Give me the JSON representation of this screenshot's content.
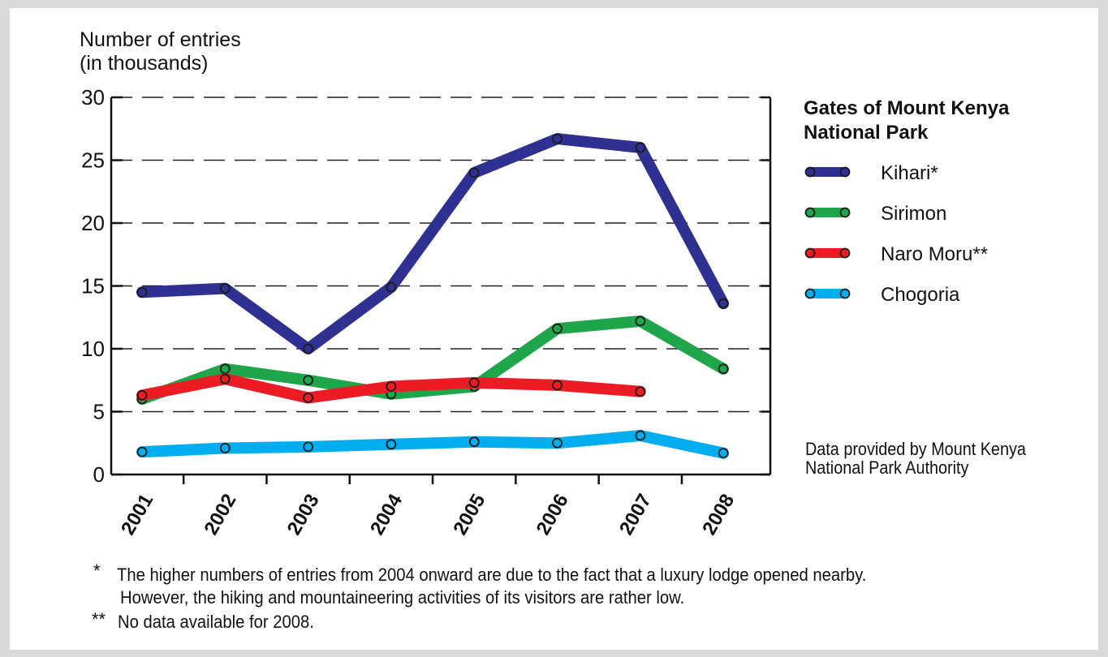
{
  "chart_data": {
    "type": "line",
    "ylabel": [
      "Number of entries",
      "(in thousands)"
    ],
    "categories": [
      "2001",
      "2002",
      "2003",
      "2004",
      "2005",
      "2006",
      "2007",
      "2008"
    ],
    "ylim": [
      0,
      30
    ],
    "yticks": [
      "0",
      "5",
      "10",
      "15",
      "20",
      "25",
      "30"
    ],
    "grid": "dashed horizontal",
    "legend_title": [
      "Gates of Mount Kenya",
      "National Park"
    ],
    "legend_placement": "right",
    "series": [
      {
        "name": "Kihari*",
        "color": "#2e3192",
        "values": [
          14.5,
          14.8,
          10.0,
          14.9,
          24.0,
          26.7,
          26.0,
          13.6
        ]
      },
      {
        "name": "Sirimon",
        "color": "#1fa64a",
        "values": [
          6.0,
          8.4,
          7.5,
          6.4,
          7.0,
          11.6,
          12.2,
          8.4
        ]
      },
      {
        "name": "Naro Moru**",
        "color": "#ed1c24",
        "values": [
          6.3,
          7.6,
          6.1,
          7.0,
          7.3,
          7.1,
          6.6,
          null
        ]
      },
      {
        "name": "Chogoria",
        "color": "#00aeef",
        "values": [
          1.8,
          2.1,
          2.2,
          2.4,
          2.6,
          2.5,
          3.1,
          1.7
        ]
      }
    ],
    "source": [
      "Data provided by Mount Kenya",
      "National Park Authority"
    ]
  },
  "notes": {
    "mark1": "*",
    "line1a": "The higher numbers of entries from 2004 onward are due to the fact that a luxury lodge opened nearby.",
    "line1b": "However, the hiking and mountaineering activities of its visitors are rather low.",
    "mark2": "**",
    "line2": "No data available for 2008."
  }
}
